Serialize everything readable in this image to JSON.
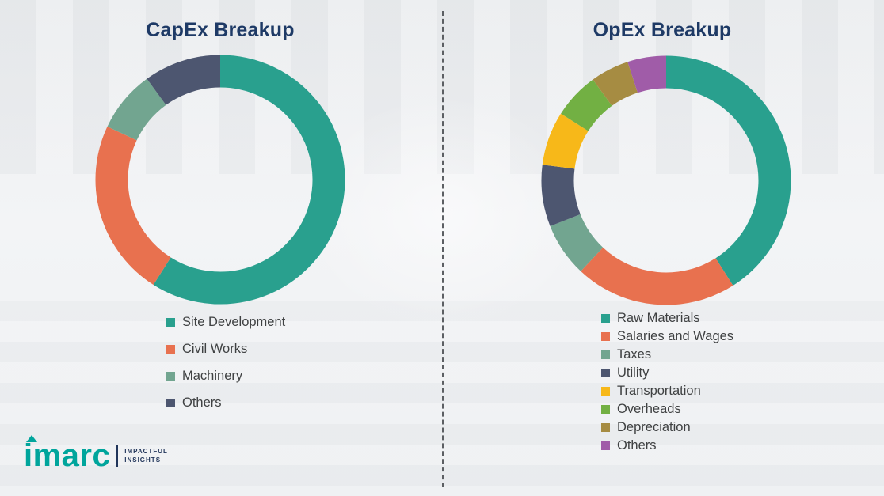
{
  "page": {
    "background_color": "#f1f2f4",
    "divider_style": "vertical-dashed"
  },
  "chart_data": [
    {
      "type": "pie",
      "subtype": "donut",
      "title": "CapEx Breakup",
      "categories": [
        "Site Development",
        "Civil Works",
        "Machinery",
        "Others"
      ],
      "values": [
        59,
        23,
        8,
        10
      ],
      "units": "percent-estimated",
      "colors": [
        "#29a08e",
        "#e8714f",
        "#72a590",
        "#4d5670"
      ],
      "start_angle_deg_clockwise_from_top": 0,
      "legend_position": "below-chart-left",
      "title_color": "#1e3a66"
    },
    {
      "type": "pie",
      "subtype": "donut",
      "title": "OpEx Breakup",
      "categories": [
        "Raw Materials",
        "Salaries and Wages",
        "Taxes",
        "Utility",
        "Transportation",
        "Overheads",
        "Depreciation",
        "Others"
      ],
      "values": [
        41,
        21,
        7,
        8,
        7,
        6,
        5,
        5
      ],
      "units": "percent-estimated",
      "colors": [
        "#29a08e",
        "#e8714f",
        "#72a590",
        "#4d5670",
        "#f7b819",
        "#72b043",
        "#a68c42",
        "#a05ca8"
      ],
      "start_angle_deg_clockwise_from_top": 0,
      "legend_position": "below-chart-left",
      "title_color": "#1e3a66"
    }
  ],
  "logo": {
    "name": "imarc",
    "color": "#00a59c",
    "tagline": [
      "IMPACTFUL",
      "INSIGHTS"
    ],
    "tagline_color": "#21355a"
  }
}
